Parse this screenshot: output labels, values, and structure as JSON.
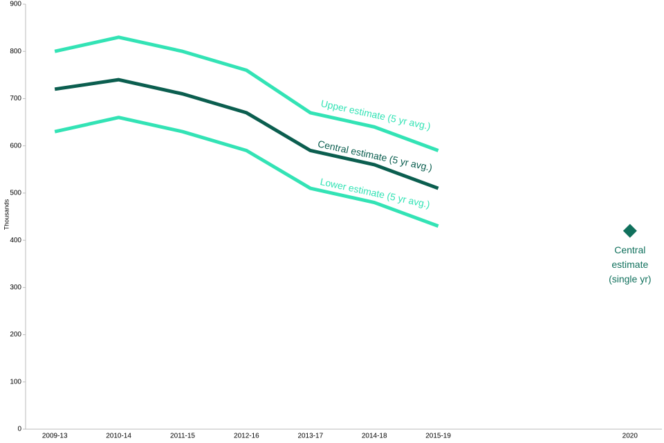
{
  "chart_data": {
    "type": "line",
    "y_label": "Thousands",
    "categories": [
      "2009-13",
      "2010-14",
      "2011-15",
      "2012-16",
      "2013-17",
      "2014-18",
      "2015-19",
      null,
      null,
      "2020"
    ],
    "series": [
      {
        "name": "Upper estimate (5 yr avg.)",
        "color": "#33e3b5",
        "values": [
          800,
          830,
          800,
          760,
          670,
          640,
          590,
          null,
          null,
          null
        ]
      },
      {
        "name": "Central estimate (5 yr avg.)",
        "color": "#0b5e4f",
        "values": [
          720,
          740,
          710,
          670,
          590,
          560,
          510,
          null,
          null,
          null
        ]
      },
      {
        "name": "Lower estimate (5 yr avg.)",
        "color": "#33e3b5",
        "values": [
          630,
          660,
          630,
          590,
          510,
          480,
          430,
          null,
          null,
          null
        ]
      },
      {
        "name": "Central estimate (single yr)",
        "color": "#10705c",
        "marker": "diamond",
        "values": [
          null,
          null,
          null,
          null,
          null,
          null,
          null,
          null,
          null,
          420
        ]
      }
    ],
    "ylim": [
      0,
      900
    ],
    "yticks": [
      0,
      100,
      200,
      300,
      400,
      500,
      600,
      700,
      800,
      900
    ],
    "grid": false
  }
}
